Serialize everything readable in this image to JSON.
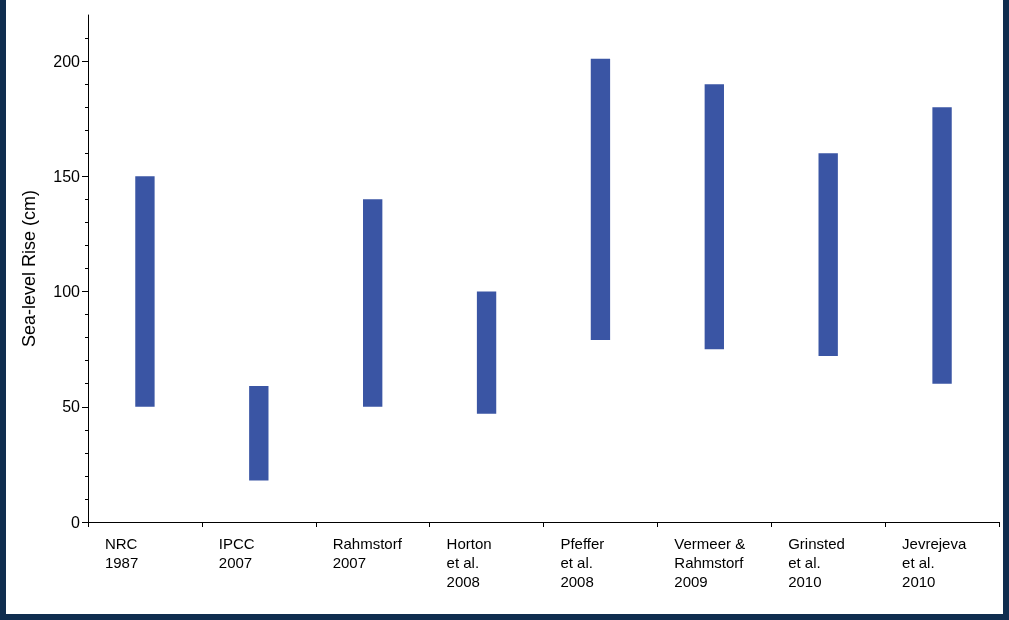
{
  "chart_data": {
    "type": "bar",
    "ylabel": "Sea-level Rise (cm)",
    "categories": [
      "NRC\n1987",
      "IPCC\n2007",
      "Rahmstorf\n2007",
      "Horton\net al.\n2008",
      "Pfeffer\net al.\n2008",
      "Vermeer &\nRahmstorf\n2009",
      "Grinsted\net al.\n2010",
      "Jevrejeva\net al.\n2010"
    ],
    "base": [
      50,
      18,
      50,
      47,
      79,
      75,
      72,
      60
    ],
    "values": [
      100,
      41,
      90,
      53,
      122,
      115,
      88,
      120
    ],
    "color": "#3a55a4",
    "ylim": [
      0,
      220
    ],
    "yticks": [
      0,
      50,
      100,
      150,
      200
    ],
    "grid": false
  }
}
